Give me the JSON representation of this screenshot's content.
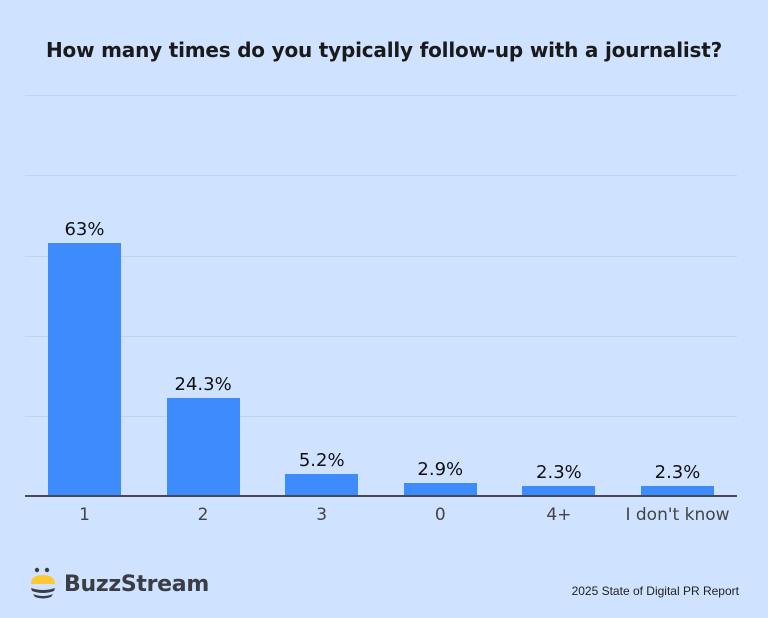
{
  "header": {
    "title": "How many times do you typically follow-up with a journalist?"
  },
  "footer": {
    "brand": "BuzzStream",
    "source": "2025 State of Digital PR Report"
  },
  "colors": {
    "background": "#cfe2ff",
    "bar": "#3d8bfd",
    "logo_yellow": "#fcc934",
    "logo_dark": "#3a3d44"
  },
  "chart_data": {
    "type": "bar",
    "title": "How many times do you typically follow-up with a journalist?",
    "xlabel": "",
    "ylabel": "",
    "categories": [
      "1",
      "2",
      "3",
      "0",
      "4+",
      "I don't know"
    ],
    "values": [
      63,
      24.3,
      5.2,
      2.9,
      2.3,
      2.3
    ],
    "value_labels": [
      "63%",
      "24.3%",
      "5.2%",
      "2.9%",
      "2.3%",
      "2.3%"
    ],
    "ylim": [
      0,
      100
    ],
    "grid": true,
    "gridlines": [
      20,
      40,
      60,
      80,
      100
    ],
    "legend": null
  }
}
